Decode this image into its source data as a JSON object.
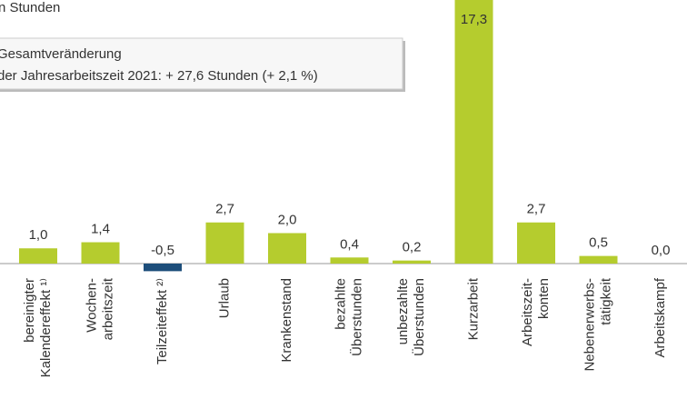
{
  "chart_data": {
    "type": "bar",
    "title": "n Stunden",
    "annotation": [
      "Gesamtveränderung",
      "der Jahresarbeitszeit 2021:  + 27,6 Stunden (+ 2,1 %)"
    ],
    "categories": [
      [
        "bereinigter",
        "Kalendereffekt ¹⁾"
      ],
      [
        "Wochen-",
        "arbeitszeit"
      ],
      [
        "Teilzeiteffekt ²⁾"
      ],
      [
        "Urlaub"
      ],
      [
        "Krankenstand"
      ],
      [
        "bezahlte",
        "Überstunden"
      ],
      [
        "unbezahlte",
        "Überstunden"
      ],
      [
        "Kurzarbeit"
      ],
      [
        "Arbeitszeit-",
        "konten"
      ],
      [
        "Nebenerwerbs-",
        "tätigkeit"
      ],
      [
        "Arbeitskampf"
      ]
    ],
    "values": [
      1.0,
      1.4,
      -0.5,
      2.7,
      2.0,
      0.4,
      0.2,
      17.3,
      2.7,
      0.5,
      0.0
    ],
    "value_labels": [
      "1,0",
      "1,4",
      "-0,5",
      "2,7",
      "2,0",
      "0,4",
      "0,2",
      "17,3",
      "2,7",
      "0,5",
      "0,0"
    ],
    "color": "#b5cc2e",
    "negative_color": "#1d4e7a"
  }
}
